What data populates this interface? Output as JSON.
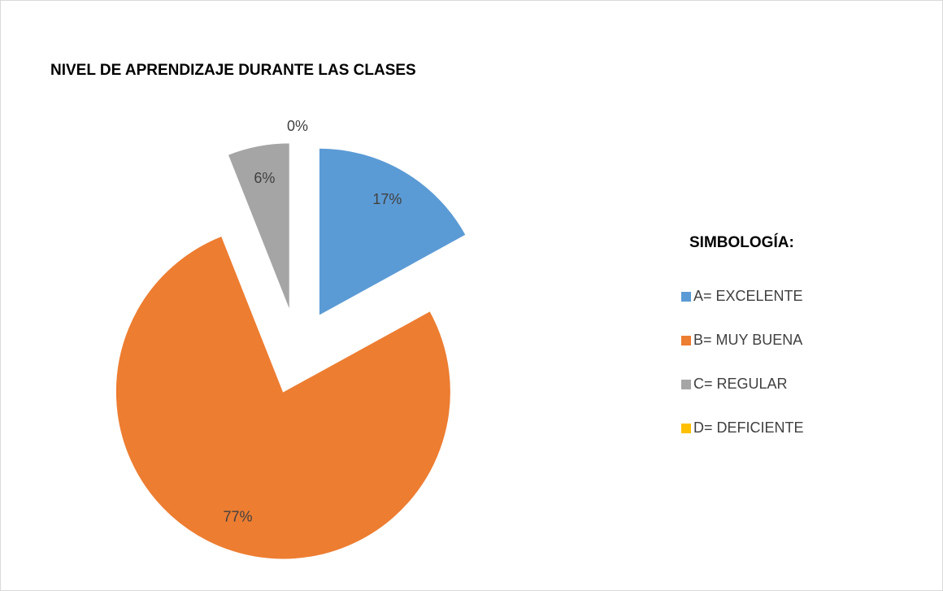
{
  "chart_data": {
    "type": "pie",
    "title": "NIVEL DE APRENDIZAJE DURANTE LAS CLASES",
    "legend_title": "SIMBOLOGÍA:",
    "legend_position": "right",
    "categories": [
      "A= EXCELENTE",
      "B= MUY BUENA",
      "C= REGULAR",
      "D= DEFICIENTE"
    ],
    "values": [
      17,
      77,
      6,
      0
    ],
    "value_labels": [
      "17%",
      "77%",
      "6%",
      "0%"
    ],
    "colors": [
      "#5b9bd5",
      "#ed7d31",
      "#a5a5a5",
      "#ffc000"
    ],
    "exploded": true
  }
}
